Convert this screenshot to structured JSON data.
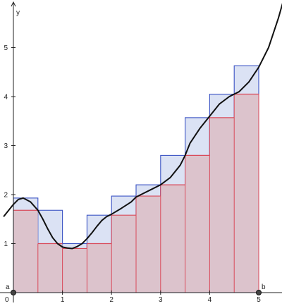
{
  "chart_data": {
    "type": "area",
    "title": "",
    "xlabel": "",
    "ylabel": "y",
    "xlim": [
      0,
      5.5
    ],
    "ylim": [
      0,
      5.8
    ],
    "x_ticks": [
      1,
      2,
      3,
      4,
      5
    ],
    "y_ticks": [
      1,
      2,
      3,
      4,
      5
    ],
    "origin_label": "0",
    "grid": false,
    "interval": {
      "a": 0,
      "b": 5,
      "a_label": "a",
      "b_label": "b"
    },
    "rectangle_width": 0.5,
    "series": [
      {
        "kind": "upper_sum",
        "color": "#3b53c4",
        "fill": "#dbe2f4",
        "x_left": [
          0,
          0.5,
          1,
          1.5,
          2,
          2.5,
          3,
          3.5,
          4,
          4.5
        ],
        "heights": [
          1.93,
          1.68,
          1.0,
          1.58,
          1.97,
          2.2,
          2.8,
          3.57,
          4.05,
          4.63
        ]
      },
      {
        "kind": "lower_sum",
        "color": "#d94a5a",
        "fill": "#dcc3cc",
        "x_left": [
          0,
          0.5,
          1,
          1.5,
          2,
          2.5,
          3,
          3.5,
          4,
          4.5
        ],
        "heights": [
          1.68,
          1.0,
          0.9,
          1.0,
          1.58,
          1.97,
          2.2,
          2.8,
          3.57,
          4.05
        ]
      },
      {
        "kind": "function",
        "color": "#111111",
        "x": [
          -0.2,
          0.0,
          0.1,
          0.2,
          0.35,
          0.5,
          0.6,
          0.7,
          0.8,
          0.9,
          1.0,
          1.1,
          1.2,
          1.3,
          1.4,
          1.5,
          1.6,
          1.7,
          1.8,
          1.9,
          2.0,
          2.2,
          2.4,
          2.5,
          2.6,
          2.8,
          3.0,
          3.2,
          3.4,
          3.5,
          3.6,
          3.8,
          4.0,
          4.2,
          4.4,
          4.5,
          4.6,
          4.8,
          5.0,
          5.2,
          5.4,
          5.5
        ],
        "y": [
          1.55,
          1.8,
          1.9,
          1.93,
          1.85,
          1.68,
          1.5,
          1.3,
          1.12,
          1.0,
          0.93,
          0.91,
          0.9,
          0.94,
          1.0,
          1.1,
          1.22,
          1.35,
          1.47,
          1.55,
          1.6,
          1.72,
          1.85,
          1.95,
          2.0,
          2.1,
          2.2,
          2.35,
          2.6,
          2.8,
          3.05,
          3.35,
          3.6,
          3.85,
          4.0,
          4.05,
          4.1,
          4.3,
          4.6,
          5.0,
          5.6,
          5.95
        ]
      }
    ]
  }
}
